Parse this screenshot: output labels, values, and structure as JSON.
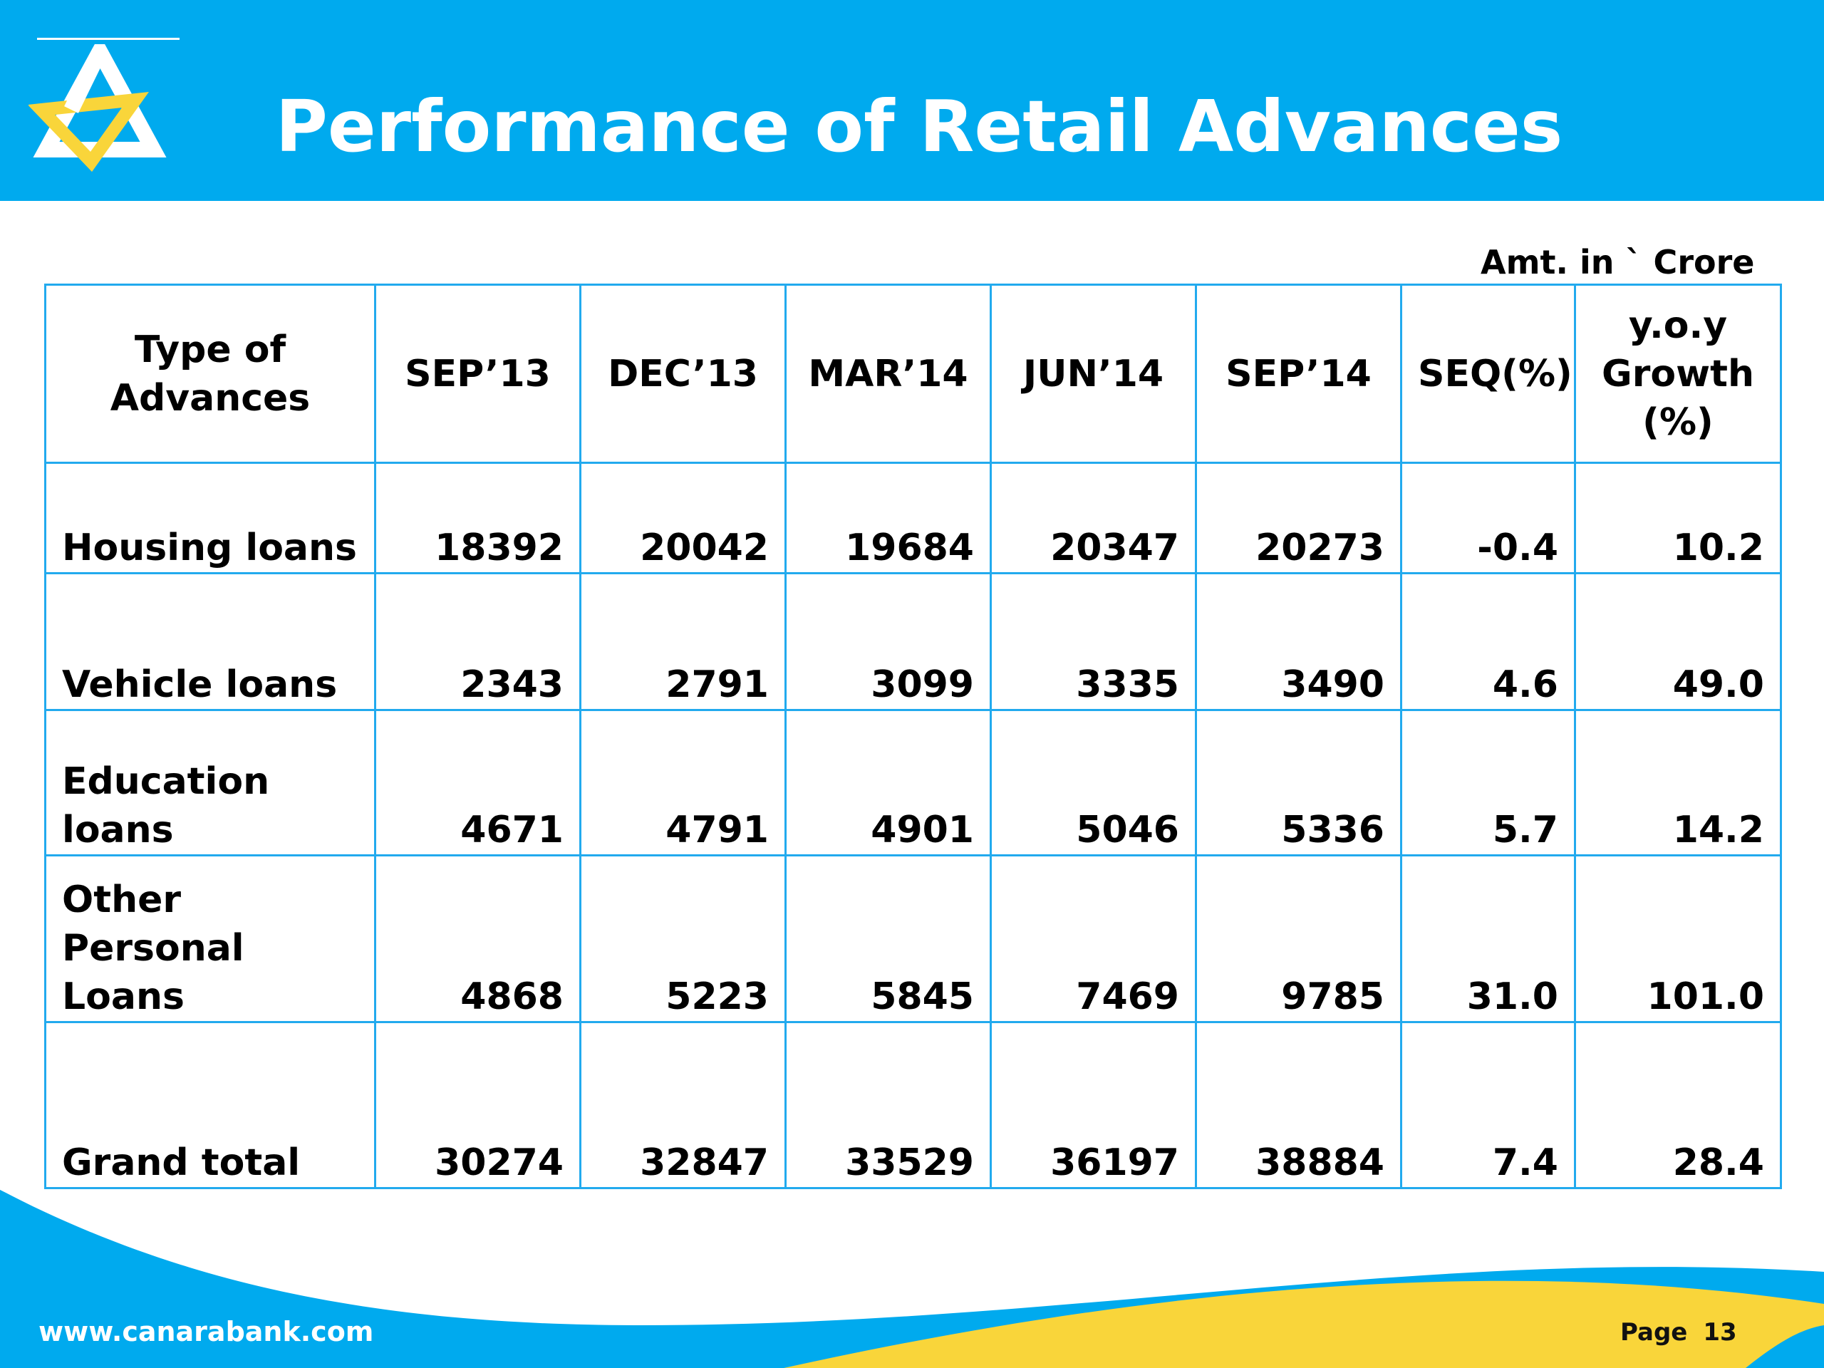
{
  "header": {
    "title": "Performance of Retail Advances"
  },
  "units_note": "Amt. in ` Crore",
  "table": {
    "columns": [
      "Type of Advances",
      "SEP’13",
      "DEC’13",
      "MAR’14",
      "JUN’14",
      "SEP’14",
      "SEQ(%)",
      "y.o.y Growth (%)"
    ],
    "rows": [
      {
        "type": "Housing loans",
        "sep13": "18392",
        "dec13": "20042",
        "mar14": "19684",
        "jun14": "20347",
        "sep14": "20273",
        "seq": "-0.4",
        "yoy": "10.2"
      },
      {
        "type": "Vehicle loans",
        "sep13": "2343",
        "dec13": "2791",
        "mar14": "3099",
        "jun14": "3335",
        "sep14": "3490",
        "seq": "4.6",
        "yoy": "49.0"
      },
      {
        "type": "Education loans",
        "sep13": "4671",
        "dec13": "4791",
        "mar14": "4901",
        "jun14": "5046",
        "sep14": "5336",
        "seq": "5.7",
        "yoy": "14.2"
      },
      {
        "type": "Other Personal Loans",
        "sep13": "4868",
        "dec13": "5223",
        "mar14": "5845",
        "jun14": "7469",
        "sep14": "9785",
        "seq": "31.0",
        "yoy": "101.0"
      },
      {
        "type": "Grand total",
        "sep13": "30274",
        "dec13": "32847",
        "mar14": "33529",
        "jun14": "36197",
        "sep14": "38884",
        "seq": "7.4",
        "yoy": "28.4"
      }
    ]
  },
  "footer": {
    "website": "www.canarabank.com",
    "page_label": "Page",
    "page_number": "13"
  },
  "colors": {
    "brand_blue": "#00aaee",
    "brand_yellow": "#f9d53a",
    "table_border": "#22aaee"
  },
  "icons": {
    "logo": "canara-bank-triangle-logo"
  }
}
